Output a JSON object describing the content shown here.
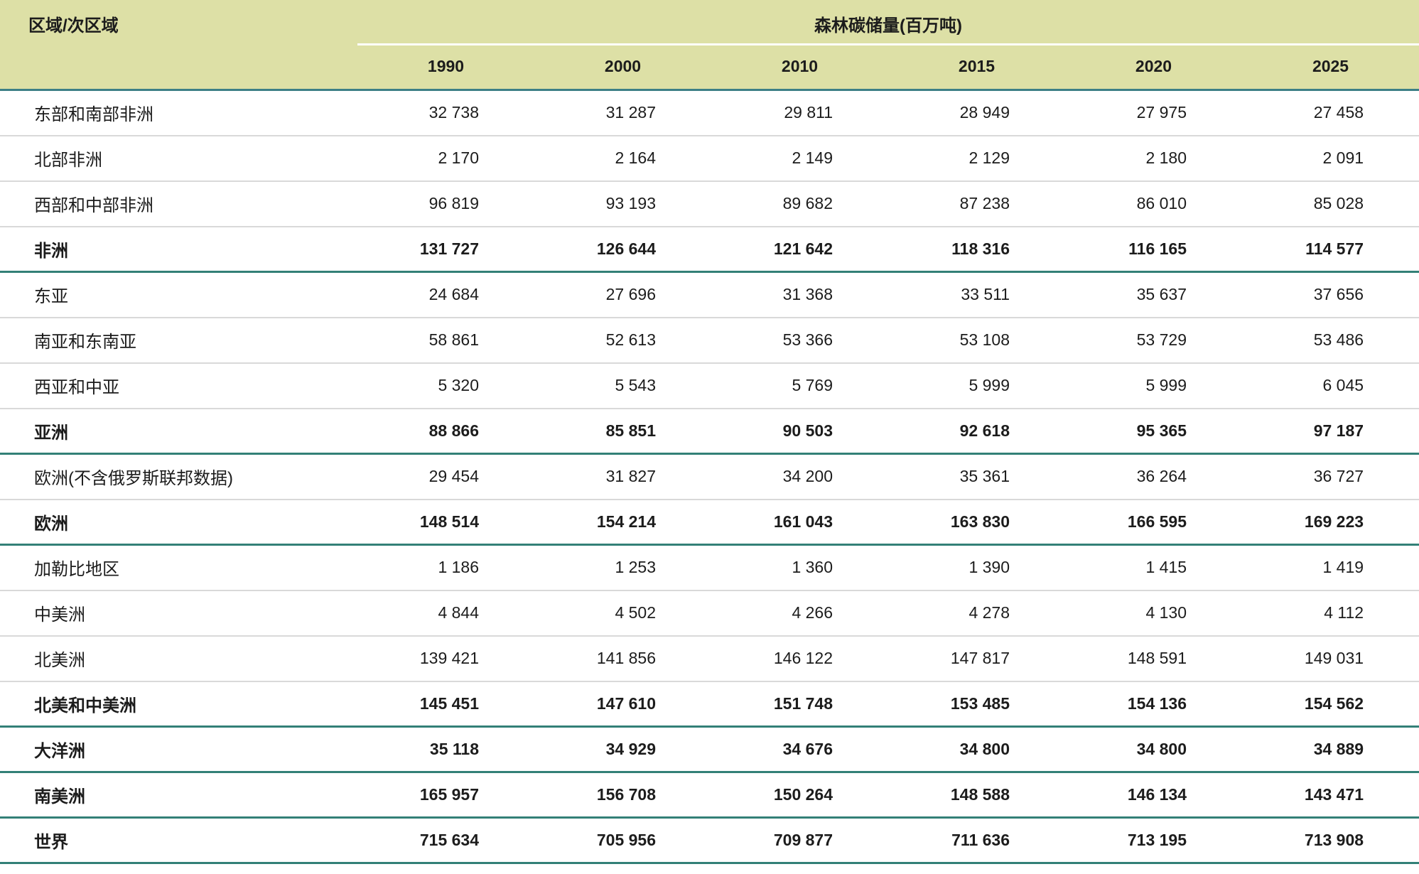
{
  "table": {
    "region_header": "区域/次区域",
    "group_header": "森林碳储量(百万吨)",
    "years": [
      "1990",
      "2000",
      "2010",
      "2015",
      "2020",
      "2025"
    ],
    "rows": [
      {
        "label": "东部和南部非洲",
        "bold": false,
        "values": [
          "32 738",
          "31 287",
          "29 811",
          "28 949",
          "27 975",
          "27 458"
        ]
      },
      {
        "label": "北部非洲",
        "bold": false,
        "values": [
          "2 170",
          "2 164",
          "2 149",
          "2 129",
          "2 180",
          "2 091"
        ]
      },
      {
        "label": "西部和中部非洲",
        "bold": false,
        "values": [
          "96 819",
          "93 193",
          "89 682",
          "87 238",
          "86 010",
          "85 028"
        ]
      },
      {
        "label": "非洲",
        "bold": true,
        "values": [
          "131 727",
          "126 644",
          "121 642",
          "118 316",
          "116 165",
          "114 577"
        ]
      },
      {
        "label": "东亚",
        "bold": false,
        "values": [
          "24 684",
          "27 696",
          "31 368",
          "33 511",
          "35 637",
          "37 656"
        ]
      },
      {
        "label": "南亚和东南亚",
        "bold": false,
        "values": [
          "58 861",
          "52 613",
          "53 366",
          "53 108",
          "53 729",
          "53 486"
        ]
      },
      {
        "label": "西亚和中亚",
        "bold": false,
        "values": [
          "5 320",
          "5 543",
          "5 769",
          "5 999",
          "5 999",
          "6 045"
        ]
      },
      {
        "label": "亚洲",
        "bold": true,
        "values": [
          "88 866",
          "85 851",
          "90 503",
          "92 618",
          "95 365",
          "97 187"
        ]
      },
      {
        "label": "欧洲(不含俄罗斯联邦数据)",
        "bold": false,
        "values": [
          "29 454",
          "31 827",
          "34 200",
          "35 361",
          "36 264",
          "36 727"
        ]
      },
      {
        "label": "欧洲",
        "bold": true,
        "values": [
          "148 514",
          "154 214",
          "161 043",
          "163 830",
          "166 595",
          "169 223"
        ]
      },
      {
        "label": "加勒比地区",
        "bold": false,
        "values": [
          "1 186",
          "1 253",
          "1 360",
          "1 390",
          "1 415",
          "1 419"
        ]
      },
      {
        "label": "中美洲",
        "bold": false,
        "values": [
          "4 844",
          "4 502",
          "4 266",
          "4 278",
          "4 130",
          "4 112"
        ]
      },
      {
        "label": "北美洲",
        "bold": false,
        "values": [
          "139 421",
          "141 856",
          "146 122",
          "147 817",
          "148 591",
          "149 031"
        ]
      },
      {
        "label": "北美和中美洲",
        "bold": true,
        "values": [
          "145 451",
          "147 610",
          "151 748",
          "153 485",
          "154 136",
          "154 562"
        ]
      },
      {
        "label": "大洋洲",
        "bold": true,
        "values": [
          "35 118",
          "34 929",
          "34 676",
          "34 800",
          "34 800",
          "34 889"
        ]
      },
      {
        "label": "南美洲",
        "bold": true,
        "values": [
          "165 957",
          "156 708",
          "150 264",
          "148 588",
          "146 134",
          "143 471"
        ]
      },
      {
        "label": "世界",
        "bold": true,
        "values": [
          "715 634",
          "705 956",
          "709 877",
          "711 636",
          "713 195",
          "713 908"
        ]
      }
    ],
    "colors": {
      "header_background": "#dde0a6",
      "header_rule": "#3c7f86",
      "section_rule": "#338077",
      "row_rule": "#d9d9d9",
      "text": "#1c1c1c"
    }
  },
  "chart_data": {
    "type": "table",
    "title": "森林碳储量(百万吨)",
    "row_header": "区域/次区域",
    "columns": [
      1990,
      2000,
      2010,
      2015,
      2020,
      2025
    ],
    "rows": [
      {
        "region": "东部和南部非洲",
        "is_total": false,
        "values": [
          32738,
          31287,
          29811,
          28949,
          27975,
          27458
        ]
      },
      {
        "region": "北部非洲",
        "is_total": false,
        "values": [
          2170,
          2164,
          2149,
          2129,
          2180,
          2091
        ]
      },
      {
        "region": "西部和中部非洲",
        "is_total": false,
        "values": [
          96819,
          93193,
          89682,
          87238,
          86010,
          85028
        ]
      },
      {
        "region": "非洲",
        "is_total": true,
        "values": [
          131727,
          126644,
          121642,
          118316,
          116165,
          114577
        ]
      },
      {
        "region": "东亚",
        "is_total": false,
        "values": [
          24684,
          27696,
          31368,
          33511,
          35637,
          37656
        ]
      },
      {
        "region": "南亚和东南亚",
        "is_total": false,
        "values": [
          58861,
          52613,
          53366,
          53108,
          53729,
          53486
        ]
      },
      {
        "region": "西亚和中亚",
        "is_total": false,
        "values": [
          5320,
          5543,
          5769,
          5999,
          5999,
          6045
        ]
      },
      {
        "region": "亚洲",
        "is_total": true,
        "values": [
          88866,
          85851,
          90503,
          92618,
          95365,
          97187
        ]
      },
      {
        "region": "欧洲(不含俄罗斯联邦数据)",
        "is_total": false,
        "values": [
          29454,
          31827,
          34200,
          35361,
          36264,
          36727
        ]
      },
      {
        "region": "欧洲",
        "is_total": true,
        "values": [
          148514,
          154214,
          161043,
          163830,
          166595,
          169223
        ]
      },
      {
        "region": "加勒比地区",
        "is_total": false,
        "values": [
          1186,
          1253,
          1360,
          1390,
          1415,
          1419
        ]
      },
      {
        "region": "中美洲",
        "is_total": false,
        "values": [
          4844,
          4502,
          4266,
          4278,
          4130,
          4112
        ]
      },
      {
        "region": "北美洲",
        "is_total": false,
        "values": [
          139421,
          141856,
          146122,
          147817,
          148591,
          149031
        ]
      },
      {
        "region": "北美和中美洲",
        "is_total": true,
        "values": [
          145451,
          147610,
          151748,
          153485,
          154136,
          154562
        ]
      },
      {
        "region": "大洋洲",
        "is_total": true,
        "values": [
          35118,
          34929,
          34676,
          34800,
          34800,
          34889
        ]
      },
      {
        "region": "南美洲",
        "is_total": true,
        "values": [
          165957,
          156708,
          150264,
          148588,
          146134,
          143471
        ]
      },
      {
        "region": "世界",
        "is_total": true,
        "values": [
          715634,
          705956,
          709877,
          711636,
          713195,
          713908
        ]
      }
    ]
  }
}
